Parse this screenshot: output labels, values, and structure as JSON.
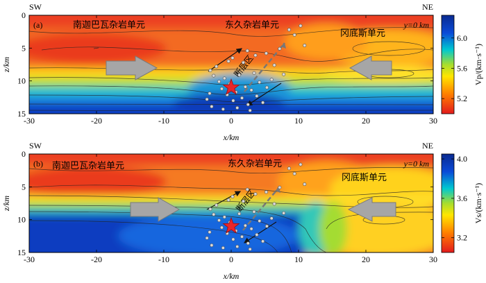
{
  "figure_title": "",
  "chart_data": [
    {
      "type": "heatmap",
      "panel_label": "(a)",
      "title": "",
      "orientation_left": "SW",
      "orientation_right": "NE",
      "profile_label": "y=0 km",
      "xlabel": "x/km",
      "ylabel": "z/km",
      "xlim": [
        -30,
        30
      ],
      "ylim": [
        15,
        0
      ],
      "xticks": [
        -30,
        -20,
        -10,
        0,
        10,
        20,
        30
      ],
      "yticks": [
        0,
        5,
        10,
        15
      ],
      "colorbar": {
        "label": "Vp/(km·s⁻¹)",
        "range": [
          5.0,
          6.3
        ],
        "ticks": [
          5.2,
          5.6,
          6.0
        ],
        "colors": [
          "#e31a1c",
          "#ff7f00",
          "#ffe600",
          "#a6dd2e",
          "#00c8d0",
          "#0a4ad8",
          "#0a2a90"
        ]
      },
      "units": [
        "南迦巴瓦杂岩单元",
        "东久杂岩单元",
        "冈底斯单元"
      ],
      "annotations": [
        "断层区"
      ],
      "mainshock": {
        "x": 0,
        "z": 11
      },
      "events": [
        {
          "x": -3.1,
          "z": 8.4
        },
        {
          "x": -2.6,
          "z": 9.2
        },
        {
          "x": -2.2,
          "z": 7.8
        },
        {
          "x": -1.8,
          "z": 10.1
        },
        {
          "x": -1.4,
          "z": 11.2
        },
        {
          "x": -1.0,
          "z": 9.6
        },
        {
          "x": -0.6,
          "z": 12.1
        },
        {
          "x": -0.2,
          "z": 10.4
        },
        {
          "x": 0.3,
          "z": 13.0
        },
        {
          "x": 0.7,
          "z": 11.7
        },
        {
          "x": 1.2,
          "z": 9.1
        },
        {
          "x": 1.6,
          "z": 12.6
        },
        {
          "x": 2.1,
          "z": 10.9
        },
        {
          "x": 2.5,
          "z": 13.6
        },
        {
          "x": 3.0,
          "z": 11.4
        },
        {
          "x": 3.4,
          "z": 8.8
        },
        {
          "x": 3.8,
          "z": 12.3
        },
        {
          "x": 4.2,
          "z": 10.2
        },
        {
          "x": 4.7,
          "z": 13.3
        },
        {
          "x": 5.3,
          "z": 11.0
        },
        {
          "x": -3.6,
          "z": 12.8
        },
        {
          "x": -2.9,
          "z": 13.9
        },
        {
          "x": -1.2,
          "z": 14.3
        },
        {
          "x": 0.9,
          "z": 14.1
        },
        {
          "x": 2.8,
          "z": 14.5
        },
        {
          "x": 1.8,
          "z": 7.2
        },
        {
          "x": 0.2,
          "z": 6.5
        },
        {
          "x": -0.4,
          "z": 7.0
        },
        {
          "x": 2.4,
          "z": 5.4
        },
        {
          "x": 3.6,
          "z": 6.1
        },
        {
          "x": 5.2,
          "z": 5.8
        },
        {
          "x": 6.4,
          "z": 7.6
        },
        {
          "x": 7.2,
          "z": 5.1
        },
        {
          "x": 8.6,
          "z": 2.2
        },
        {
          "x": 9.4,
          "z": 3.0
        },
        {
          "x": 10.3,
          "z": 1.6
        },
        {
          "x": 10.9,
          "z": 4.6
        },
        {
          "x": 7.8,
          "z": 9.0
        },
        {
          "x": 6.0,
          "z": 9.8
        },
        {
          "x": -3.2,
          "z": 11.9
        }
      ]
    },
    {
      "type": "heatmap",
      "panel_label": "(b)",
      "title": "",
      "orientation_left": "SW",
      "orientation_right": "NE",
      "profile_label": "y=0 km",
      "xlabel": "x/km",
      "ylabel": "z/km",
      "xlim": [
        -30,
        30
      ],
      "ylim": [
        15,
        0
      ],
      "xticks": [
        -30,
        -20,
        -10,
        0,
        10,
        20,
        30
      ],
      "yticks": [
        0,
        5,
        10,
        15
      ],
      "colorbar": {
        "label": "Vs/(km·s⁻¹)",
        "range": [
          3.05,
          4.05
        ],
        "ticks": [
          3.2,
          3.6,
          4.0
        ],
        "colors": [
          "#e31a1c",
          "#ff7f00",
          "#ffe600",
          "#a6dd2e",
          "#00c8d0",
          "#0a4ad8",
          "#0a2a90"
        ]
      },
      "units": [
        "南迦巴瓦杂岩单元",
        "东久杂岩单元",
        "冈底斯单元"
      ],
      "annotations": [
        "断层区"
      ],
      "mainshock": {
        "x": 0,
        "z": 11
      },
      "events": [
        {
          "x": -3.1,
          "z": 8.4
        },
        {
          "x": -2.6,
          "z": 9.2
        },
        {
          "x": -2.2,
          "z": 7.8
        },
        {
          "x": -1.8,
          "z": 10.1
        },
        {
          "x": -1.4,
          "z": 11.2
        },
        {
          "x": -1.0,
          "z": 9.6
        },
        {
          "x": -0.6,
          "z": 12.1
        },
        {
          "x": -0.2,
          "z": 10.4
        },
        {
          "x": 0.3,
          "z": 13.0
        },
        {
          "x": 0.7,
          "z": 11.7
        },
        {
          "x": 1.2,
          "z": 9.1
        },
        {
          "x": 1.6,
          "z": 12.6
        },
        {
          "x": 2.1,
          "z": 10.9
        },
        {
          "x": 2.5,
          "z": 13.6
        },
        {
          "x": 3.0,
          "z": 11.4
        },
        {
          "x": 3.4,
          "z": 8.8
        },
        {
          "x": 3.8,
          "z": 12.3
        },
        {
          "x": 4.2,
          "z": 10.2
        },
        {
          "x": 4.7,
          "z": 13.3
        },
        {
          "x": 5.3,
          "z": 11.0
        },
        {
          "x": -3.6,
          "z": 12.8
        },
        {
          "x": -2.9,
          "z": 13.9
        },
        {
          "x": -1.2,
          "z": 14.3
        },
        {
          "x": 0.9,
          "z": 14.1
        },
        {
          "x": 2.8,
          "z": 14.5
        },
        {
          "x": 1.8,
          "z": 7.2
        },
        {
          "x": 0.2,
          "z": 6.5
        },
        {
          "x": -0.4,
          "z": 7.0
        },
        {
          "x": 2.4,
          "z": 5.4
        },
        {
          "x": 3.6,
          "z": 6.1
        },
        {
          "x": 5.2,
          "z": 5.8
        },
        {
          "x": 6.4,
          "z": 7.6
        },
        {
          "x": 7.2,
          "z": 5.1
        },
        {
          "x": 8.6,
          "z": 2.2
        },
        {
          "x": 9.4,
          "z": 3.0
        },
        {
          "x": 10.3,
          "z": 1.6
        },
        {
          "x": 10.9,
          "z": 4.6
        },
        {
          "x": 7.8,
          "z": 9.0
        },
        {
          "x": 6.0,
          "z": 9.8
        },
        {
          "x": -3.2,
          "z": 11.9
        }
      ]
    }
  ]
}
